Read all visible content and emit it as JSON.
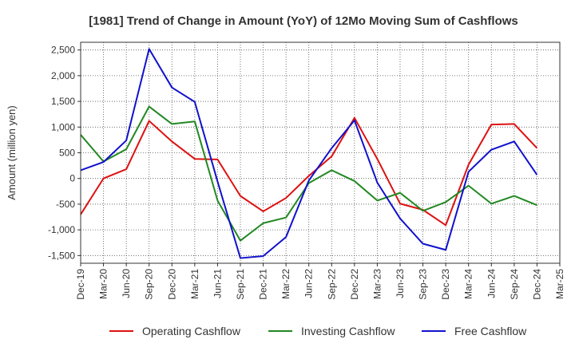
{
  "chart_data": {
    "type": "line",
    "title": "[1981]  Trend of Change in Amount (YoY) of 12Mo Moving Sum of Cashflows",
    "xlabel": "",
    "ylabel": "Amount (million yen)",
    "ylim": [
      -1650,
      2650
    ],
    "yticks": [
      -1500,
      -1000,
      -500,
      0,
      500,
      1000,
      1500,
      2000,
      2500
    ],
    "ytick_labels": [
      "-1,500",
      "-1,000",
      "-500",
      "0",
      "500",
      "1,000",
      "1,500",
      "2,000",
      "2,500"
    ],
    "categories": [
      "Dec-19",
      "Mar-20",
      "Jun-20",
      "Sep-20",
      "Dec-20",
      "Mar-21",
      "Jun-21",
      "Sep-21",
      "Dec-21",
      "Mar-22",
      "Jun-22",
      "Sep-22",
      "Dec-22",
      "Mar-23",
      "Jun-23",
      "Sep-23",
      "Dec-23",
      "Mar-24",
      "Jun-24",
      "Sep-24",
      "Dec-24",
      "Mar-25"
    ],
    "grid": true,
    "legend_position": "bottom",
    "series": [
      {
        "name": "Operating Cashflow",
        "color": "#dd1111",
        "values": [
          -700,
          0,
          180,
          1120,
          720,
          380,
          370,
          -340,
          -640,
          -380,
          50,
          430,
          1180,
          380,
          -490,
          -610,
          -910,
          270,
          1050,
          1060,
          590,
          null
        ]
      },
      {
        "name": "Investing Cashflow",
        "color": "#228822",
        "values": [
          850,
          330,
          570,
          1400,
          1060,
          1110,
          -430,
          -1210,
          -870,
          -760,
          -90,
          160,
          -50,
          -430,
          -280,
          -630,
          -460,
          -140,
          -490,
          -340,
          -520,
          null
        ]
      },
      {
        "name": "Free Cashflow",
        "color": "#1111cc",
        "values": [
          160,
          320,
          740,
          2520,
          1770,
          1490,
          -60,
          -1550,
          -1510,
          -1140,
          -40,
          590,
          1130,
          -80,
          -780,
          -1270,
          -1390,
          130,
          560,
          720,
          70,
          null
        ]
      }
    ]
  }
}
